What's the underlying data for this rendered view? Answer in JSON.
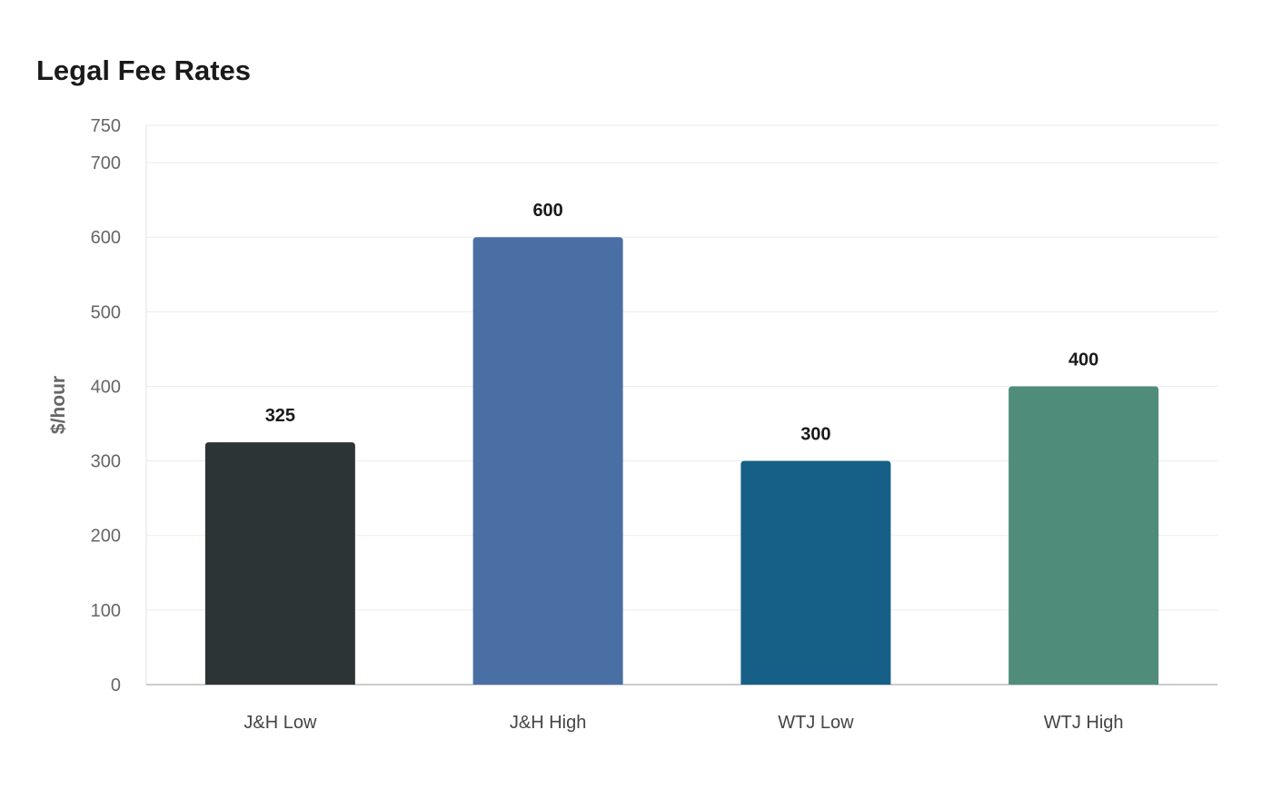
{
  "chart_data": {
    "type": "bar",
    "title": "Legal Fee Rates",
    "xlabel": "",
    "ylabel": "$/hour",
    "categories": [
      "J&H Low",
      "J&H High",
      "WTJ Low",
      "WTJ High"
    ],
    "values": [
      325,
      600,
      300,
      400
    ],
    "colors": [
      "#2d3436",
      "#4a6fa5",
      "#166088",
      "#4f8d7a"
    ],
    "ylim": [
      0,
      750
    ],
    "yticks": [
      0,
      100,
      200,
      300,
      400,
      500,
      600,
      700,
      750
    ],
    "grid": true,
    "legend": "none",
    "data_labels": true
  }
}
